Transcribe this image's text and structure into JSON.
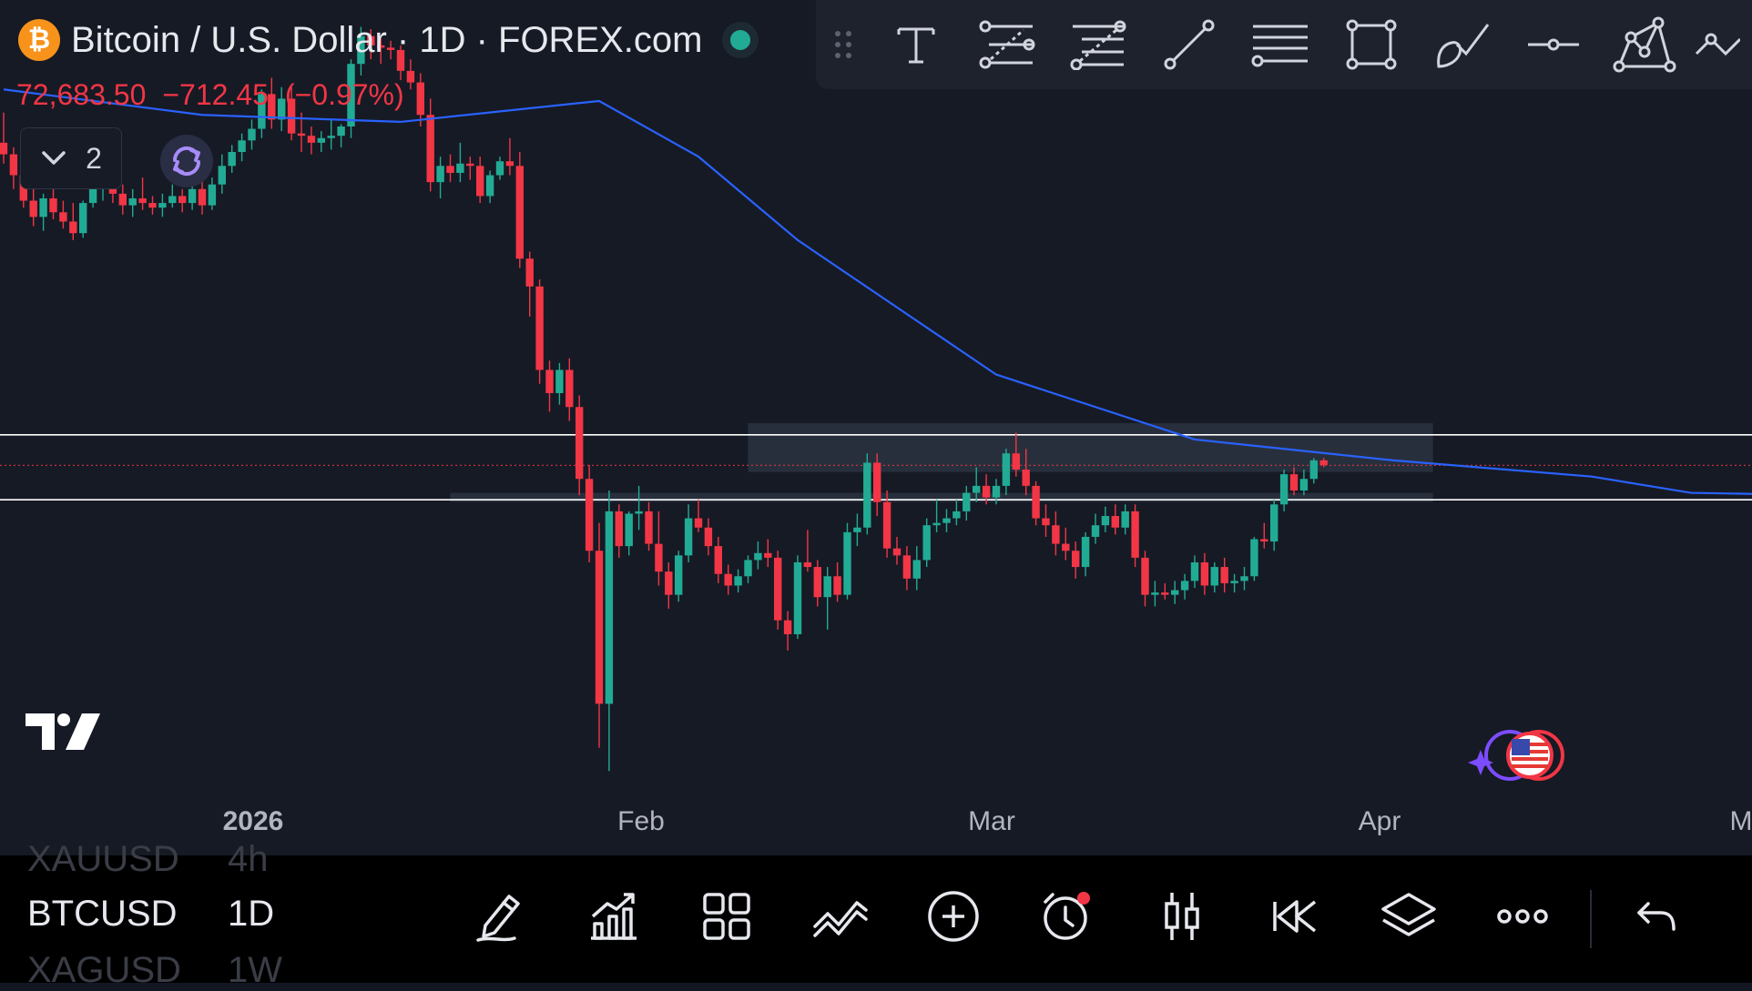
{
  "header": {
    "symbol_title": "Bitcoin / U.S. Dollar · 1D · FOREX.com",
    "logo_glyph": "₿",
    "price": "72,683.50",
    "change": "−712.45",
    "change_pct": "(−0.97%)",
    "indicator_count": "2"
  },
  "colors": {
    "background": "#161a25",
    "up": "#22ab94",
    "down": "#f23645",
    "ma": "#2962ff",
    "zone": "#363d4c",
    "hline": "#ffffff"
  },
  "drawing_toolbar": {
    "icons": [
      "drag-handle-icon",
      "text-icon",
      "parallel-channel-icon",
      "fib-retracement-icon",
      "trend-line-icon",
      "horizontal-lines-icon",
      "rectangle-icon",
      "brush-icon",
      "horizontal-ray-icon",
      "pattern-icon",
      "path-icon"
    ]
  },
  "time_axis": {
    "ticks": [
      "2026",
      "Feb",
      "Mar",
      "Apr",
      "M"
    ]
  },
  "chart_data": {
    "type": "candlestick",
    "symbol": "BTCUSD",
    "interval": "1D",
    "last_price": 72683.5,
    "price_range": [
      59000,
      91500
    ],
    "candles": [
      {
        "o": 86600,
        "h": 87900,
        "l": 85700,
        "c": 86100
      },
      {
        "o": 86100,
        "h": 86400,
        "l": 84600,
        "c": 85200
      },
      {
        "o": 85200,
        "h": 85600,
        "l": 83800,
        "c": 84100
      },
      {
        "o": 84100,
        "h": 84600,
        "l": 83000,
        "c": 83400
      },
      {
        "o": 83400,
        "h": 84400,
        "l": 82800,
        "c": 84200
      },
      {
        "o": 84200,
        "h": 84900,
        "l": 83300,
        "c": 83600
      },
      {
        "o": 83600,
        "h": 84100,
        "l": 82900,
        "c": 83200
      },
      {
        "o": 83200,
        "h": 84000,
        "l": 82400,
        "c": 82700
      },
      {
        "o": 82700,
        "h": 84100,
        "l": 82500,
        "c": 84000
      },
      {
        "o": 84000,
        "h": 85000,
        "l": 83800,
        "c": 84600
      },
      {
        "o": 84600,
        "h": 85500,
        "l": 84100,
        "c": 84800
      },
      {
        "o": 84800,
        "h": 85600,
        "l": 84000,
        "c": 84400
      },
      {
        "o": 84400,
        "h": 84800,
        "l": 83500,
        "c": 83900
      },
      {
        "o": 83900,
        "h": 84600,
        "l": 83400,
        "c": 84200
      },
      {
        "o": 84200,
        "h": 85100,
        "l": 83700,
        "c": 84000
      },
      {
        "o": 84000,
        "h": 84300,
        "l": 83500,
        "c": 83800
      },
      {
        "o": 83800,
        "h": 84400,
        "l": 83400,
        "c": 84000
      },
      {
        "o": 84000,
        "h": 84800,
        "l": 83800,
        "c": 84300
      },
      {
        "o": 84300,
        "h": 84600,
        "l": 83600,
        "c": 84000
      },
      {
        "o": 84000,
        "h": 84900,
        "l": 83700,
        "c": 84600
      },
      {
        "o": 84600,
        "h": 85200,
        "l": 83500,
        "c": 83900
      },
      {
        "o": 83900,
        "h": 85100,
        "l": 83700,
        "c": 84800
      },
      {
        "o": 84800,
        "h": 86100,
        "l": 84400,
        "c": 85600
      },
      {
        "o": 85600,
        "h": 86500,
        "l": 85300,
        "c": 86200
      },
      {
        "o": 86200,
        "h": 87000,
        "l": 85800,
        "c": 86700
      },
      {
        "o": 86700,
        "h": 87600,
        "l": 86300,
        "c": 87200
      },
      {
        "o": 87200,
        "h": 88900,
        "l": 86800,
        "c": 88700
      },
      {
        "o": 88700,
        "h": 89400,
        "l": 87200,
        "c": 87600
      },
      {
        "o": 87600,
        "h": 89000,
        "l": 87100,
        "c": 88500
      },
      {
        "o": 88500,
        "h": 89000,
        "l": 86700,
        "c": 87000
      },
      {
        "o": 87000,
        "h": 87900,
        "l": 86200,
        "c": 86900
      },
      {
        "o": 86900,
        "h": 87300,
        "l": 86100,
        "c": 86600
      },
      {
        "o": 86600,
        "h": 87100,
        "l": 86200,
        "c": 86800
      },
      {
        "o": 86800,
        "h": 87600,
        "l": 86300,
        "c": 86900
      },
      {
        "o": 86900,
        "h": 87400,
        "l": 86400,
        "c": 87300
      },
      {
        "o": 87300,
        "h": 90200,
        "l": 86800,
        "c": 90000
      },
      {
        "o": 90000,
        "h": 91600,
        "l": 89500,
        "c": 91200
      },
      {
        "o": 91200,
        "h": 91500,
        "l": 90200,
        "c": 90800
      },
      {
        "o": 90800,
        "h": 91100,
        "l": 90000,
        "c": 90700
      },
      {
        "o": 90700,
        "h": 91000,
        "l": 90200,
        "c": 90600
      },
      {
        "o": 90600,
        "h": 90800,
        "l": 89300,
        "c": 89700
      },
      {
        "o": 89700,
        "h": 90200,
        "l": 88900,
        "c": 89200
      },
      {
        "o": 89200,
        "h": 89600,
        "l": 87300,
        "c": 87800
      },
      {
        "o": 87800,
        "h": 88500,
        "l": 84500,
        "c": 84900
      },
      {
        "o": 84900,
        "h": 86000,
        "l": 84200,
        "c": 85600
      },
      {
        "o": 85600,
        "h": 86100,
        "l": 84900,
        "c": 85300
      },
      {
        "o": 85300,
        "h": 86600,
        "l": 84900,
        "c": 85700
      },
      {
        "o": 85700,
        "h": 86000,
        "l": 85000,
        "c": 85600
      },
      {
        "o": 85600,
        "h": 86000,
        "l": 84000,
        "c": 84300
      },
      {
        "o": 84300,
        "h": 85400,
        "l": 84000,
        "c": 85200
      },
      {
        "o": 85200,
        "h": 86000,
        "l": 85000,
        "c": 85800
      },
      {
        "o": 85800,
        "h": 86800,
        "l": 85200,
        "c": 85600
      },
      {
        "o": 85600,
        "h": 86200,
        "l": 81200,
        "c": 81600
      },
      {
        "o": 81600,
        "h": 81900,
        "l": 79100,
        "c": 80400
      },
      {
        "o": 80400,
        "h": 80700,
        "l": 76200,
        "c": 76800
      },
      {
        "o": 76800,
        "h": 77200,
        "l": 75000,
        "c": 75800
      },
      {
        "o": 75800,
        "h": 77100,
        "l": 75300,
        "c": 76800
      },
      {
        "o": 76800,
        "h": 77300,
        "l": 74600,
        "c": 75200
      },
      {
        "o": 75200,
        "h": 75700,
        "l": 71400,
        "c": 72100
      },
      {
        "o": 72100,
        "h": 72700,
        "l": 68500,
        "c": 69000
      },
      {
        "o": 69000,
        "h": 70200,
        "l": 60500,
        "c": 62400
      },
      {
        "o": 62400,
        "h": 71600,
        "l": 59500,
        "c": 70700
      },
      {
        "o": 70700,
        "h": 71000,
        "l": 68700,
        "c": 69200
      },
      {
        "o": 69200,
        "h": 70700,
        "l": 68800,
        "c": 70600
      },
      {
        "o": 70600,
        "h": 71800,
        "l": 69900,
        "c": 70700
      },
      {
        "o": 70700,
        "h": 71100,
        "l": 69000,
        "c": 69300
      },
      {
        "o": 69300,
        "h": 70700,
        "l": 67500,
        "c": 68100
      },
      {
        "o": 68100,
        "h": 68500,
        "l": 66500,
        "c": 67100
      },
      {
        "o": 67100,
        "h": 69000,
        "l": 66800,
        "c": 68800
      },
      {
        "o": 68800,
        "h": 71000,
        "l": 68500,
        "c": 70400
      },
      {
        "o": 70400,
        "h": 71200,
        "l": 69800,
        "c": 70000
      },
      {
        "o": 70000,
        "h": 70400,
        "l": 68800,
        "c": 69200
      },
      {
        "o": 69200,
        "h": 69600,
        "l": 67600,
        "c": 68000
      },
      {
        "o": 68000,
        "h": 68400,
        "l": 67100,
        "c": 67500
      },
      {
        "o": 67500,
        "h": 68200,
        "l": 67200,
        "c": 67900
      },
      {
        "o": 67900,
        "h": 68800,
        "l": 67600,
        "c": 68600
      },
      {
        "o": 68600,
        "h": 69400,
        "l": 68200,
        "c": 68900
      },
      {
        "o": 68900,
        "h": 69500,
        "l": 68300,
        "c": 68700
      },
      {
        "o": 68700,
        "h": 69000,
        "l": 65600,
        "c": 66000
      },
      {
        "o": 66000,
        "h": 66400,
        "l": 64700,
        "c": 65400
      },
      {
        "o": 65400,
        "h": 68800,
        "l": 65200,
        "c": 68500
      },
      {
        "o": 68500,
        "h": 69900,
        "l": 68100,
        "c": 68300
      },
      {
        "o": 68300,
        "h": 68600,
        "l": 66600,
        "c": 67000
      },
      {
        "o": 67000,
        "h": 68300,
        "l": 65600,
        "c": 67900
      },
      {
        "o": 67900,
        "h": 68500,
        "l": 66800,
        "c": 67100
      },
      {
        "o": 67100,
        "h": 70200,
        "l": 66900,
        "c": 69800
      },
      {
        "o": 69800,
        "h": 70600,
        "l": 69200,
        "c": 70000
      },
      {
        "o": 70000,
        "h": 73200,
        "l": 69700,
        "c": 72800
      },
      {
        "o": 72800,
        "h": 73200,
        "l": 70500,
        "c": 71100
      },
      {
        "o": 71100,
        "h": 71600,
        "l": 68700,
        "c": 69100
      },
      {
        "o": 69100,
        "h": 69600,
        "l": 68400,
        "c": 68800
      },
      {
        "o": 68800,
        "h": 69200,
        "l": 67300,
        "c": 67800
      },
      {
        "o": 67800,
        "h": 69200,
        "l": 67300,
        "c": 68600
      },
      {
        "o": 68600,
        "h": 70400,
        "l": 68300,
        "c": 70100
      },
      {
        "o": 70100,
        "h": 71200,
        "l": 69800,
        "c": 70200
      },
      {
        "o": 70200,
        "h": 70800,
        "l": 69800,
        "c": 70400
      },
      {
        "o": 70400,
        "h": 71200,
        "l": 70100,
        "c": 70700
      },
      {
        "o": 70700,
        "h": 71800,
        "l": 70300,
        "c": 71500
      },
      {
        "o": 71500,
        "h": 72600,
        "l": 71100,
        "c": 71800
      },
      {
        "o": 71800,
        "h": 72300,
        "l": 71000,
        "c": 71300
      },
      {
        "o": 71300,
        "h": 72100,
        "l": 71000,
        "c": 71800
      },
      {
        "o": 71800,
        "h": 73400,
        "l": 71400,
        "c": 73200
      },
      {
        "o": 73200,
        "h": 74100,
        "l": 72200,
        "c": 72500
      },
      {
        "o": 72500,
        "h": 73400,
        "l": 71400,
        "c": 71800
      },
      {
        "o": 71800,
        "h": 72000,
        "l": 70100,
        "c": 70400
      },
      {
        "o": 70400,
        "h": 71000,
        "l": 69600,
        "c": 70100
      },
      {
        "o": 70100,
        "h": 70700,
        "l": 68800,
        "c": 69300
      },
      {
        "o": 69300,
        "h": 70000,
        "l": 68600,
        "c": 69000
      },
      {
        "o": 69000,
        "h": 69400,
        "l": 67800,
        "c": 68300
      },
      {
        "o": 68300,
        "h": 69800,
        "l": 67900,
        "c": 69600
      },
      {
        "o": 69600,
        "h": 70600,
        "l": 69300,
        "c": 70100
      },
      {
        "o": 70100,
        "h": 70900,
        "l": 69800,
        "c": 70500
      },
      {
        "o": 70500,
        "h": 71000,
        "l": 69700,
        "c": 70000
      },
      {
        "o": 70000,
        "h": 71000,
        "l": 69700,
        "c": 70700
      },
      {
        "o": 70700,
        "h": 71000,
        "l": 68300,
        "c": 68700
      },
      {
        "o": 68700,
        "h": 69000,
        "l": 66600,
        "c": 67100
      },
      {
        "o": 67100,
        "h": 67700,
        "l": 66600,
        "c": 67200
      },
      {
        "o": 67200,
        "h": 67600,
        "l": 66900,
        "c": 67100
      },
      {
        "o": 67100,
        "h": 67700,
        "l": 66700,
        "c": 67300
      },
      {
        "o": 67300,
        "h": 68000,
        "l": 66900,
        "c": 67700
      },
      {
        "o": 67700,
        "h": 68800,
        "l": 67400,
        "c": 68500
      },
      {
        "o": 68500,
        "h": 68900,
        "l": 67100,
        "c": 67500
      },
      {
        "o": 67500,
        "h": 68500,
        "l": 67200,
        "c": 68300
      },
      {
        "o": 68300,
        "h": 68700,
        "l": 67200,
        "c": 67600
      },
      {
        "o": 67600,
        "h": 68000,
        "l": 67200,
        "c": 67700
      },
      {
        "o": 67700,
        "h": 68300,
        "l": 67300,
        "c": 67900
      },
      {
        "o": 67900,
        "h": 69600,
        "l": 67700,
        "c": 69500
      },
      {
        "o": 69500,
        "h": 70200,
        "l": 69100,
        "c": 69400
      },
      {
        "o": 69400,
        "h": 71200,
        "l": 69000,
        "c": 71000
      },
      {
        "o": 71000,
        "h": 72500,
        "l": 70700,
        "c": 72300
      },
      {
        "o": 72300,
        "h": 72600,
        "l": 71400,
        "c": 71600
      },
      {
        "o": 71600,
        "h": 72500,
        "l": 71400,
        "c": 72100
      },
      {
        "o": 72100,
        "h": 73000,
        "l": 71900,
        "c": 72900
      },
      {
        "o": 72900,
        "h": 73000,
        "l": 72600,
        "c": 72700
      }
    ],
    "moving_average": {
      "type": "MA",
      "values": [
        [
          0,
          88900
        ],
        [
          20,
          87800
        ],
        [
          40,
          87500
        ],
        [
          60,
          88400
        ],
        [
          70,
          86000
        ],
        [
          80,
          82400
        ],
        [
          100,
          76600
        ],
        [
          120,
          73800
        ],
        [
          140,
          72900
        ],
        [
          160,
          72200
        ],
        [
          170,
          71500
        ],
        [
          183,
          71400
        ]
      ]
    },
    "horizontal_lines": [
      74000,
      71200
    ],
    "zone": {
      "top": 74500,
      "bottom": 72400
    },
    "support_band": 71300,
    "x_ticks": [
      {
        "label": "2026",
        "i": 26
      },
      {
        "label": "Feb",
        "i": 65
      },
      {
        "label": "Mar",
        "i": 97
      },
      {
        "label": "Apr",
        "i": 132
      }
    ]
  },
  "watchlist": [
    {
      "symbol": "XAUUSD",
      "interval": "4h",
      "state": "ghost"
    },
    {
      "symbol": "BTCUSD",
      "interval": "1D",
      "state": "active"
    },
    {
      "symbol": "XAGUSD",
      "interval": "1W",
      "state": "ghost"
    }
  ],
  "bottom_toolbar": {
    "icons": [
      "drawing-pen-icon",
      "indicators-icon",
      "templates-grid-icon",
      "compare-icon",
      "add-icon",
      "alert-icon",
      "chart-type-icon",
      "replay-icon",
      "layers-icon",
      "more-icon",
      "undo-icon"
    ]
  }
}
